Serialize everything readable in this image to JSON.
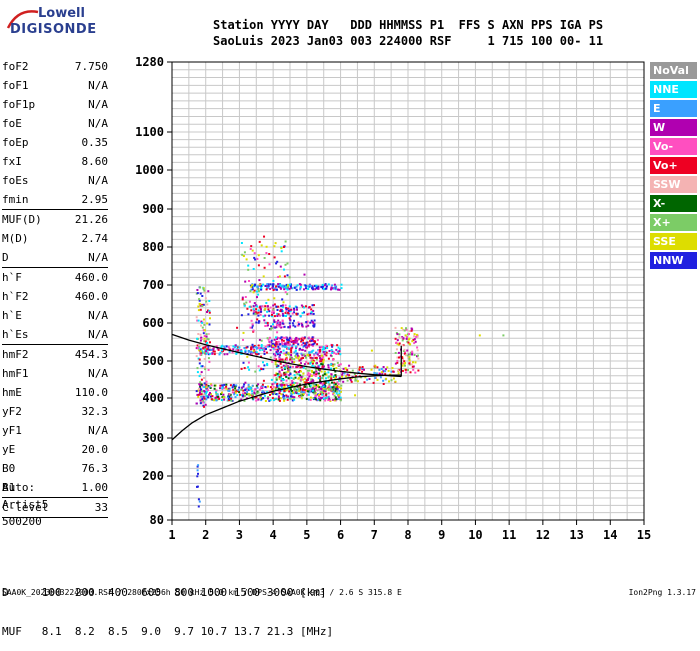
{
  "logo": {
    "line1": "Lowell",
    "line2": "DIGISONDE"
  },
  "header": {
    "line1": "Station YYYY DAY   DDD HHMMSS P1  FFS S AXN PPS IGA PS",
    "line2": "SaoLuis 2023 Jan03 003 224000 RSF     1 715 100 00- 11"
  },
  "params": {
    "group1": [
      {
        "label": "foF2",
        "value": "7.750"
      },
      {
        "label": "foF1",
        "value": "N/A"
      },
      {
        "label": "foF1p",
        "value": "N/A"
      },
      {
        "label": "foE",
        "value": "N/A"
      },
      {
        "label": "foEp",
        "value": "0.35"
      },
      {
        "label": "fxI",
        "value": "8.60"
      },
      {
        "label": "foEs",
        "value": "N/A"
      },
      {
        "label": "fmin",
        "value": "2.95"
      }
    ],
    "group2": [
      {
        "label": "MUF(D)",
        "value": "21.26"
      },
      {
        "label": "M(D)",
        "value": "2.74"
      },
      {
        "label": "D",
        "value": "N/A"
      }
    ],
    "group3": [
      {
        "label": "h`F",
        "value": "460.0"
      },
      {
        "label": "h`F2",
        "value": "460.0"
      },
      {
        "label": "h`E",
        "value": "N/A"
      },
      {
        "label": "h`Es",
        "value": "N/A"
      }
    ],
    "group4": [
      {
        "label": "hmF2",
        "value": "454.3"
      },
      {
        "label": "hmF1",
        "value": "N/A"
      },
      {
        "label": "hmE",
        "value": "110.0"
      },
      {
        "label": "yF2",
        "value": "32.3"
      },
      {
        "label": "yF1",
        "value": "N/A"
      },
      {
        "label": "yE",
        "value": "20.0"
      },
      {
        "label": "B0",
        "value": "76.3"
      },
      {
        "label": "B1",
        "value": "1.00"
      }
    ],
    "group5": [
      {
        "label": "C-level",
        "value": "33"
      }
    ]
  },
  "auto": {
    "line1": "Auto:",
    "line2": "Artist5",
    "line3": "500200"
  },
  "legend": [
    {
      "label": "NoVal",
      "color": "#999999"
    },
    {
      "label": "NNE",
      "color": "#00e5ff"
    },
    {
      "label": "E",
      "color": "#3aa0ff"
    },
    {
      "label": "W",
      "color": "#b000b0"
    },
    {
      "label": "Vo-",
      "color": "#ff4fc0"
    },
    {
      "label": "Vo+",
      "color": "#ee0022"
    },
    {
      "label": "SSW",
      "color": "#f4b3b3"
    },
    {
      "label": "X-",
      "color": "#006600"
    },
    {
      "label": "X+",
      "color": "#7ccc66"
    },
    {
      "label": "SSE",
      "color": "#dddd00"
    },
    {
      "label": "NNW",
      "color": "#2020e0"
    }
  ],
  "footer": {
    "line1": "D     100  200  400  600  800 1000 1500 3000 [km]",
    "line2": "MUF   8.1  8.2  8.5  9.0  9.7 10.7 13.7 21.3 [MHz]",
    "source": "SAA0K_2023003224000.RSF / 280fx256h 50 kHz 5.0 km / DPS-4 SAA0K 903 / 2.6 S 315.8 E",
    "version": "Ion2Png 1.3.17"
  },
  "chart_data": {
    "type": "scatter",
    "title": "",
    "xlabel": "",
    "ylabel": "",
    "xlim": [
      1,
      15
    ],
    "ylim": [
      80,
      1280
    ],
    "y_scale": "ionogram (height)",
    "x_ticks": [
      1,
      2,
      3,
      4,
      5,
      6,
      7,
      8,
      9,
      10,
      11,
      12,
      13,
      14,
      15
    ],
    "y_ticks": [
      80,
      200,
      300,
      400,
      500,
      600,
      700,
      800,
      900,
      1000,
      1100,
      1280
    ],
    "grid": true,
    "series": [
      {
        "name": "trace-lower",
        "color": "#000000",
        "x": [
          1.0,
          1.3,
          1.6,
          2.0,
          2.5,
          3.0,
          3.5,
          4.0,
          4.5,
          5.0,
          5.5,
          6.0,
          6.5,
          7.0,
          7.5,
          7.8
        ],
        "y": [
          295,
          318,
          338,
          358,
          375,
          392,
          405,
          418,
          428,
          438,
          445,
          452,
          457,
          460,
          462,
          462
        ]
      },
      {
        "name": "trace-upper",
        "color": "#000000",
        "x": [
          1.0,
          1.5,
          2.0,
          2.5,
          3.0,
          3.5,
          4.0,
          4.5,
          5.0,
          5.5,
          6.0,
          6.5,
          7.0,
          7.5,
          7.8
        ],
        "y": [
          570,
          555,
          543,
          532,
          522,
          512,
          502,
          493,
          485,
          478,
          472,
          467,
          463,
          460,
          458
        ]
      }
    ]
  }
}
